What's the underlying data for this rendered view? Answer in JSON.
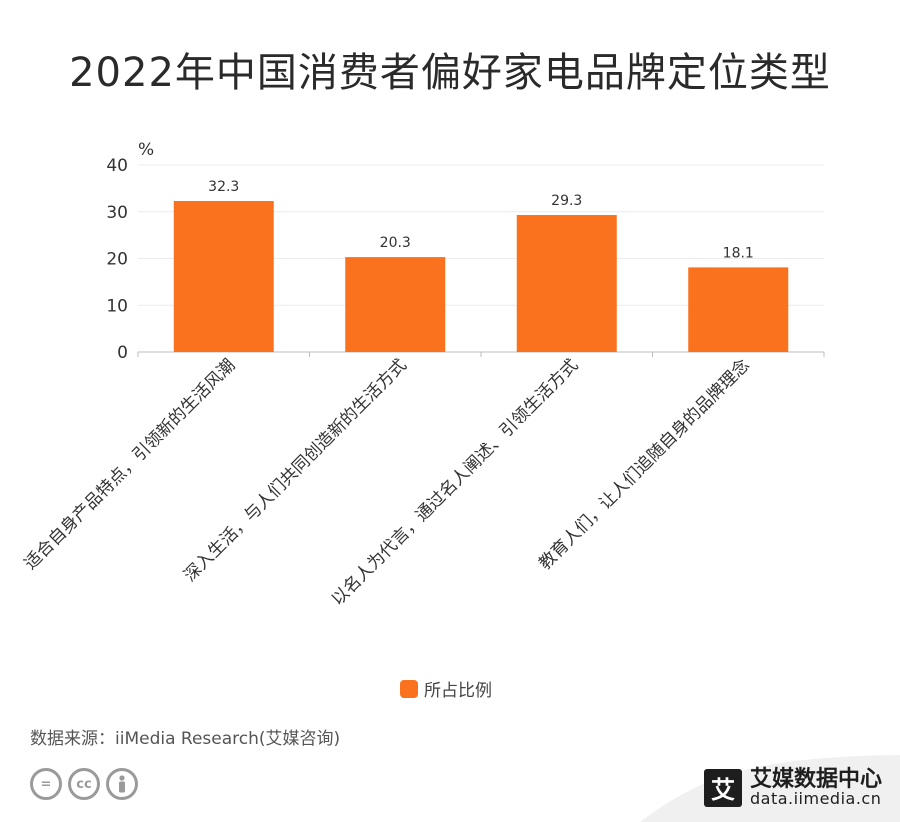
{
  "title": "2022年中国消费者偏好家电品牌定位类型",
  "chart_data": {
    "type": "bar",
    "categories": [
      "适合自身产品特点，引领新的生活风潮",
      "深入生活，与人们共同创造新的生活方式",
      "以名人为代言，通过名人阐述、引领生活方式",
      "教育人们，让人们追随自身的品牌理念"
    ],
    "series": [
      {
        "name": "所占比例",
        "values": [
          32.3,
          20.3,
          29.3,
          18.1
        ]
      }
    ],
    "ylabel": "%",
    "yticks": [
      0,
      10,
      20,
      30,
      40
    ],
    "ylim": [
      0,
      40
    ],
    "grid": true,
    "legend": "bottom",
    "bar_color": "#fa721d"
  },
  "source": "数据来源：iiMedia Research(艾媒咨询)",
  "brand": {
    "logo_char": "艾",
    "name": "艾媒数据中心",
    "url": "data.iimedia.cn"
  },
  "icons": [
    "equal-icon",
    "cc-icon",
    "person-icon"
  ]
}
